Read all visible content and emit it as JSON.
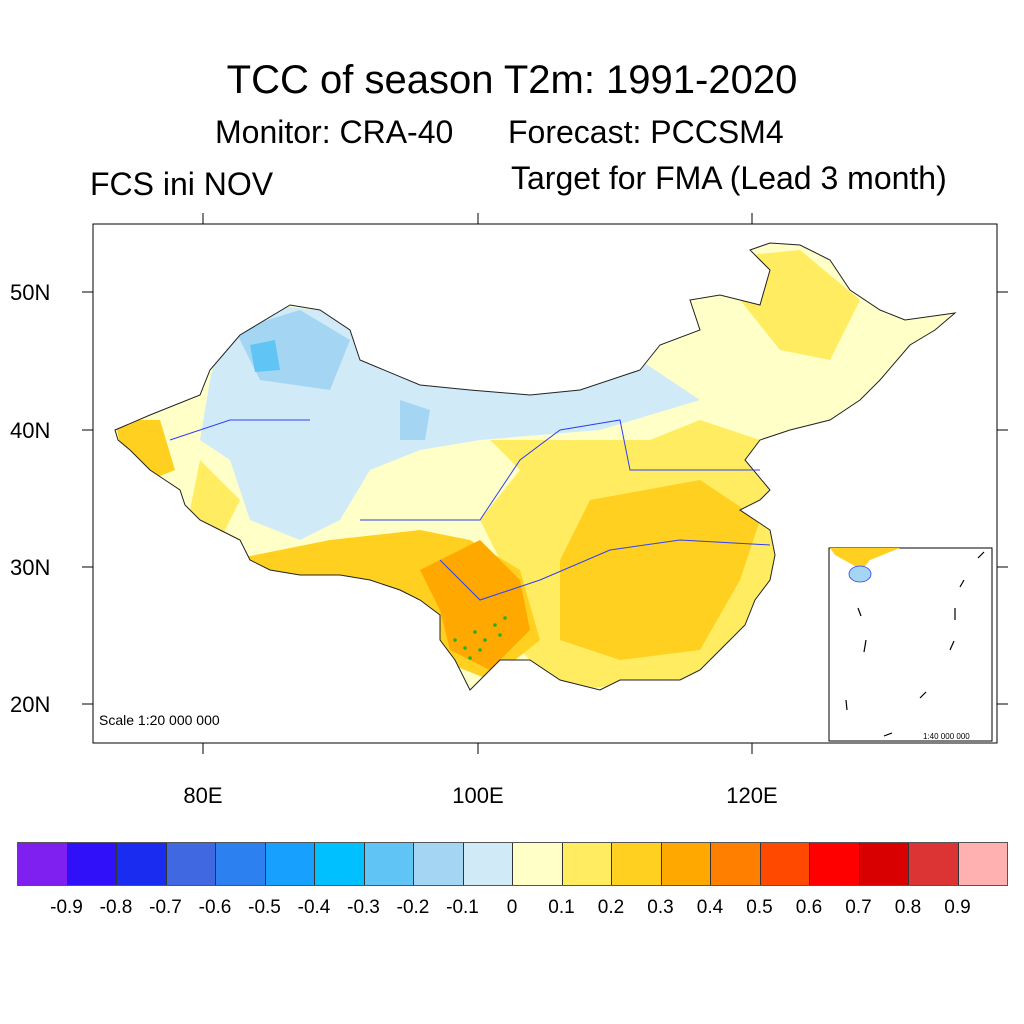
{
  "title": "TCC of season T2m: 1991-2020",
  "subtitle_monitor": "Monitor: CRA-40",
  "subtitle_forecast": "Forecast: PCCSM4",
  "left_string": "FCS ini NOV",
  "right_string": "Target for FMA (Lead 3 month)",
  "map": {
    "lat_labels": [
      "50N",
      "40N",
      "30N",
      "20N"
    ],
    "lon_labels": [
      "80E",
      "100E",
      "120E"
    ],
    "scale_label": "Scale 1:20 000 000",
    "inset_scale_label": "1:40 000 000"
  },
  "colorbar": {
    "colors": [
      "#8020f0",
      "#3010f8",
      "#1a2cf0",
      "#4068e0",
      "#2c80f0",
      "#18a0ff",
      "#00c0ff",
      "#60c4f4",
      "#a4d6f4",
      "#d0eaf8",
      "#ffffc8",
      "#ffec60",
      "#ffd020",
      "#ffa800",
      "#ff8000",
      "#ff4800",
      "#ff0000",
      "#d80000",
      "#dc3434",
      "#ffb0b0"
    ],
    "labels": [
      "-0.9",
      "-0.8",
      "-0.7",
      "-0.6",
      "-0.5",
      "-0.4",
      "-0.3",
      "-0.2",
      "-0.1",
      "0",
      "0.1",
      "0.2",
      "0.3",
      "0.4",
      "0.5",
      "0.6",
      "0.7",
      "0.8",
      "0.9"
    ]
  }
}
